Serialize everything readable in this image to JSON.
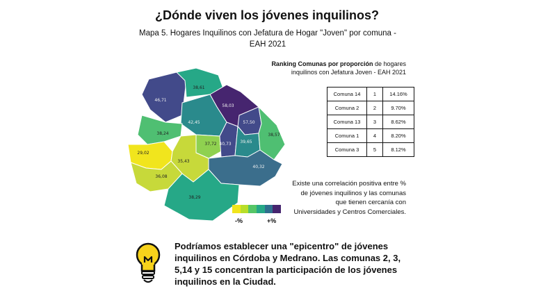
{
  "title": "¿Dónde viven los jóvenes inquilinos?",
  "subtitle": "Mapa 5. Hogares Inquilinos con Jefatura de Hogar \"Joven\" por comuna - EAH 2021",
  "map": {
    "labels": {
      "a": "46,71",
      "b": "38,61",
      "c": "58,03",
      "d": "57,50",
      "e": "42,45",
      "f": "38,24",
      "g": "37,72",
      "h": "40,73",
      "i": "39,65",
      "j": "38,57",
      "k": "29,02",
      "l": "35,43",
      "m": "36,08",
      "n": "40,32",
      "o": "38,29"
    },
    "colors": {
      "yellow": "#f1e51d",
      "yellow_green": "#c7d93a",
      "light_green": "#8fd150",
      "green": "#4fbf72",
      "teal_green": "#26a887",
      "teal": "#2a8a8c",
      "steel": "#3b6e8c",
      "blue_purple": "#424a8a",
      "purple": "#46256f"
    }
  },
  "legend": {
    "colors": [
      "#f1e51d",
      "#b8de29",
      "#56c667",
      "#26a887",
      "#2f6f8e",
      "#46256f"
    ],
    "min_label": "-%",
    "max_label": "+%"
  },
  "ranking": {
    "title_bold": "Ranking Comunas por proporción",
    "title_rest": " de hogares inquilinos con Jefatura Joven - EAH 2021",
    "rows": [
      {
        "comuna": "Comuna 14",
        "rank": "1",
        "pct": "14.16%"
      },
      {
        "comuna": "Comuna 2",
        "rank": "2",
        "pct": "9.70%"
      },
      {
        "comuna": "Comuna 13",
        "rank": "3",
        "pct": "8.62%"
      },
      {
        "comuna": "Comuna 1",
        "rank": "4",
        "pct": "8.20%"
      },
      {
        "comuna": "Comuna 3",
        "rank": "5",
        "pct": "8.12%"
      }
    ]
  },
  "note": "Existe una correlación positiva entre % de jóvenes inquilinos y las comunas que tienen cercanía con Universidades y Centros Comerciales.",
  "conclusion": "Podríamos establecer una \"epicentro\" de jóvenes inquilinos en Córdoba y Medrano. Las comunas 2, 3, 5,14 y 15 concentran la participación de los jóvenes inquilinos en la Ciudad.",
  "icons": {
    "bulb": "lightbulb-icon"
  }
}
